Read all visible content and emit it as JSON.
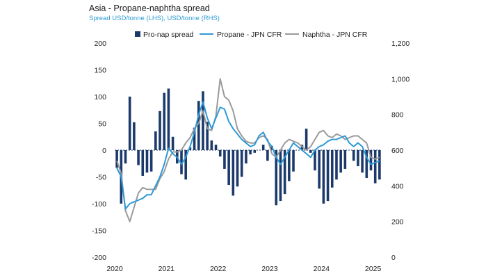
{
  "chart_data": {
    "type": "bar+line",
    "title": "Asia - Propane-naphtha spread",
    "subtitle": "Spread USD/tonne (LHS), USD/tonne (RHS)",
    "x_labels": [
      "2020",
      "2021",
      "2022",
      "2023",
      "2024",
      "2025"
    ],
    "left_axis": {
      "min": -200,
      "max": 200,
      "ticks": [
        200,
        150,
        100,
        50,
        0,
        -50,
        -100,
        -150,
        -200
      ]
    },
    "right_axis": {
      "min": 0,
      "max": 1200,
      "ticks": [
        "1,200",
        "1,000",
        "800",
        "600",
        "400",
        "200",
        "0"
      ]
    },
    "legend": [
      "Pro-nap spread",
      "Propane - JPN CFR",
      "Naphtha - JPN CFR"
    ],
    "colors": {
      "bars": "#1b3a6b",
      "propane": "#2e9ad7",
      "naphtha": "#9a9a9a"
    },
    "series": [
      {
        "name": "Pro-nap spread",
        "axis": "left",
        "kind": "bar",
        "values": [
          -33,
          -100,
          -25,
          100,
          52,
          -28,
          -48,
          -42,
          -40,
          35,
          73,
          107,
          115,
          25,
          -25,
          -45,
          -55,
          5,
          42,
          92,
          110,
          53,
          18,
          10,
          -12,
          -35,
          -65,
          -85,
          -68,
          -50,
          -25,
          -8,
          -5,
          0,
          10,
          -20,
          8,
          -103,
          -95,
          -82,
          -58,
          -40,
          0,
          10,
          40,
          -5,
          -38,
          -72,
          -100,
          -95,
          -70,
          -55,
          -42,
          -35,
          0,
          -20,
          -30,
          -42,
          -52,
          -38,
          -62,
          -55
        ]
      },
      {
        "name": "Propane - JPN CFR",
        "axis": "right",
        "kind": "line",
        "values": [
          500,
          450,
          270,
          300,
          310,
          320,
          330,
          350,
          350,
          400,
          450,
          520,
          610,
          580,
          560,
          520,
          560,
          620,
          700,
          800,
          870,
          780,
          720,
          780,
          840,
          830,
          760,
          720,
          690,
          660,
          640,
          620,
          630,
          680,
          700,
          650,
          620,
          560,
          520,
          560,
          600,
          640,
          620,
          600,
          580,
          560,
          600,
          620,
          630,
          650,
          660,
          660,
          670,
          680,
          640,
          620,
          640,
          620,
          560,
          520,
          530,
          540
        ]
      },
      {
        "name": "Naphtha - JPN CFR",
        "axis": "right",
        "kind": "line",
        "values": [
          540,
          470,
          260,
          200,
          280,
          360,
          390,
          380,
          380,
          380,
          440,
          480,
          550,
          590,
          590,
          600,
          640,
          670,
          720,
          750,
          820,
          720,
          710,
          790,
          1000,
          900,
          880,
          820,
          720,
          680,
          650,
          640,
          640,
          670,
          680,
          660,
          580,
          560,
          600,
          640,
          660,
          650,
          640,
          620,
          600,
          620,
          660,
          700,
          710,
          680,
          670,
          690,
          680,
          660,
          670,
          680,
          680,
          660,
          640,
          560,
          550,
          560
        ]
      }
    ]
  }
}
